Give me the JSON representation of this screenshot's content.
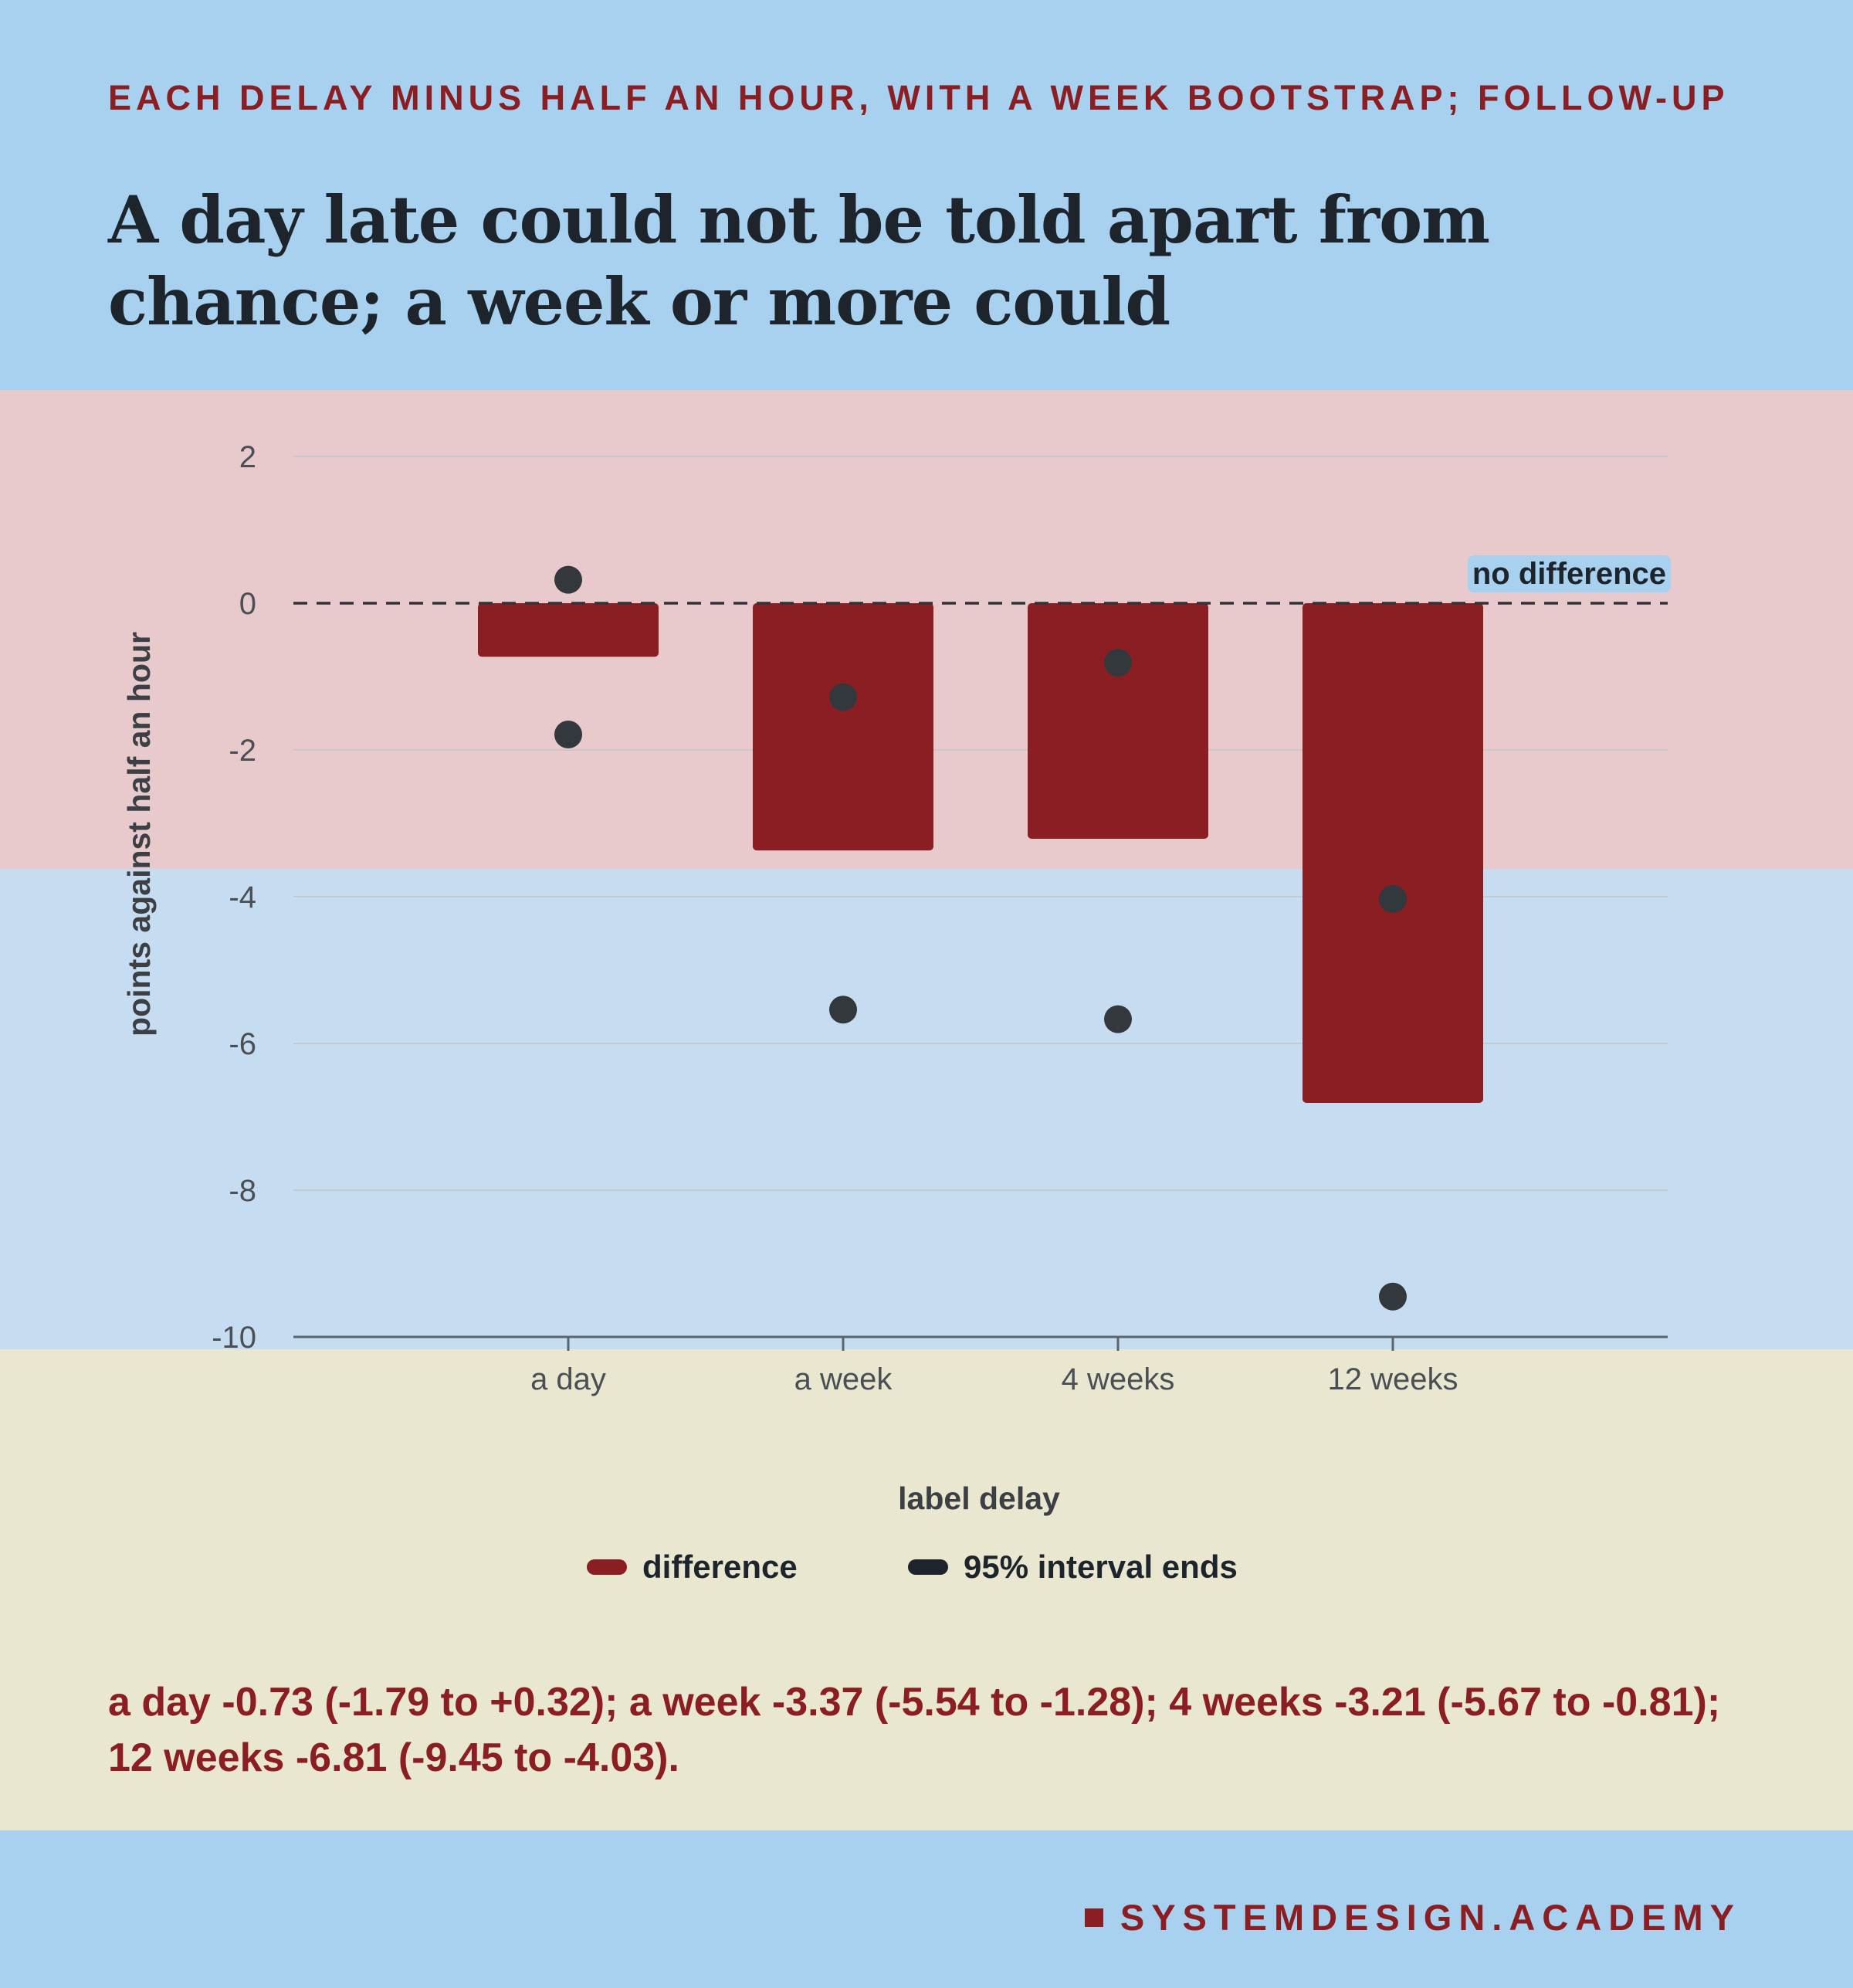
{
  "header": {
    "eyebrow": "EACH DELAY MINUS HALF AN HOUR, WITH A WEEK BOOTSTRAP; FOLLOW-UP",
    "title": "A day late could not be told apart from chance; a week or more could"
  },
  "chart_data": {
    "type": "bar",
    "categories": [
      "a day",
      "a week",
      "4 weeks",
      "12 weeks"
    ],
    "series": [
      {
        "name": "difference",
        "values": [
          -0.73,
          -3.37,
          -3.21,
          -6.81
        ]
      },
      {
        "name": "95% interval ends",
        "lower": [
          -1.79,
          -5.54,
          -5.67,
          -9.45
        ],
        "upper": [
          0.32,
          -1.28,
          -0.81,
          -4.03
        ]
      }
    ],
    "xlabel": "label delay",
    "ylabel": "points against half an hour",
    "ylim": [
      -10,
      2.5
    ],
    "yticks": [
      2,
      0,
      -2,
      -4,
      -6,
      -8,
      -10
    ],
    "ytick_labels": [
      "2",
      "0",
      "-2",
      "-4",
      "-6",
      "-8",
      "-10"
    ],
    "reference_line": {
      "value": 0,
      "label": "no difference",
      "style": "dashed"
    },
    "grid": true,
    "legend_placement": "bottom-center",
    "colors": {
      "bar": "#8b1e22",
      "dot": "#33383d",
      "grid": "#c0c4c8",
      "axis": "#5a6570"
    }
  },
  "legend": {
    "items": [
      {
        "label": "difference",
        "color": "#8b1e22"
      },
      {
        "label": "95% interval ends",
        "color": "#1d242b"
      }
    ]
  },
  "summary": "a day -0.73 (-1.79 to +0.32); a week -3.37 (-5.54 to -1.28); 4 weeks -3.21 (-5.67 to -0.81); 12 weeks -6.81 (-9.45 to -4.03).",
  "brand": {
    "name": "SYSTEMDESIGN.ACADEMY",
    "color": "#8b1e22"
  }
}
